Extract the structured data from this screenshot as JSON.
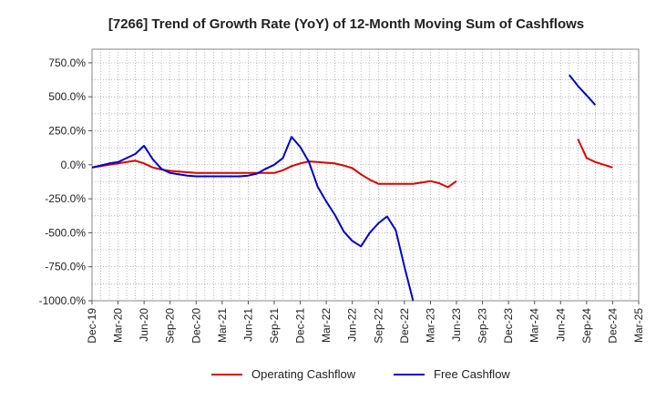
{
  "chart_data": {
    "type": "line",
    "title": "[7266]  Trend of Growth Rate (YoY) of 12-Month Moving Sum of Cashflows",
    "xlabel": "",
    "ylabel": "",
    "ylim": [
      -1000,
      850
    ],
    "y_ticks": [
      750,
      500,
      250,
      0,
      -250,
      -500,
      -750,
      -1000
    ],
    "y_tick_labels": [
      "750.0%",
      "500.0%",
      "250.0%",
      "0.0%",
      "-250.0%",
      "-500.0%",
      "-750.0%",
      "-1000.0%"
    ],
    "x_labels": [
      "Dec-19",
      "Mar-20",
      "Jun-20",
      "Sep-20",
      "Dec-20",
      "Mar-21",
      "Jun-21",
      "Sep-21",
      "Dec-21",
      "Mar-22",
      "Jun-22",
      "Sep-22",
      "Dec-22",
      "Mar-23",
      "Jun-23",
      "Sep-23",
      "Dec-23",
      "Mar-24",
      "Jun-24",
      "Sep-24",
      "Dec-24",
      "Mar-25"
    ],
    "grid": true,
    "legend_position": "bottom",
    "series": [
      {
        "name": "Operating Cashflow",
        "color": "#dd0000",
        "points": [
          [
            0,
            -20
          ],
          [
            1,
            -10
          ],
          [
            2,
            0
          ],
          [
            3,
            10
          ],
          [
            4,
            20
          ],
          [
            5,
            30
          ],
          [
            6,
            10
          ],
          [
            7,
            -20
          ],
          [
            8,
            -35
          ],
          [
            9,
            -45
          ],
          [
            10,
            -50
          ],
          [
            11,
            -55
          ],
          [
            12,
            -60
          ],
          [
            13,
            -60
          ],
          [
            14,
            -60
          ],
          [
            15,
            -60
          ],
          [
            16,
            -60
          ],
          [
            17,
            -60
          ],
          [
            18,
            -60
          ],
          [
            19,
            -60
          ],
          [
            20,
            -60
          ],
          [
            21,
            -60
          ],
          [
            22,
            -40
          ],
          [
            23,
            -10
          ],
          [
            24,
            10
          ],
          [
            25,
            25
          ],
          [
            26,
            20
          ],
          [
            27,
            15
          ],
          [
            28,
            10
          ],
          [
            29,
            -5
          ],
          [
            30,
            -25
          ],
          [
            31,
            -70
          ],
          [
            32,
            -110
          ],
          [
            33,
            -140
          ],
          [
            34,
            -140
          ],
          [
            35,
            -140
          ],
          [
            36,
            -140
          ],
          [
            37,
            -140
          ],
          [
            38,
            -130
          ],
          [
            39,
            -120
          ],
          [
            40,
            -135
          ],
          [
            41,
            -165
          ],
          [
            42,
            -120
          ],
          null,
          [
            56,
            190
          ],
          [
            57,
            50
          ],
          [
            58,
            20
          ],
          [
            59,
            0
          ],
          [
            60,
            -20
          ]
        ]
      },
      {
        "name": "Free Cashflow",
        "color": "#0000cc",
        "points": [
          [
            0,
            -20
          ],
          [
            1,
            -5
          ],
          [
            2,
            10
          ],
          [
            3,
            20
          ],
          [
            4,
            50
          ],
          [
            5,
            80
          ],
          [
            6,
            140
          ],
          [
            7,
            40
          ],
          [
            8,
            -30
          ],
          [
            9,
            -60
          ],
          [
            10,
            -70
          ],
          [
            11,
            -80
          ],
          [
            12,
            -85
          ],
          [
            13,
            -85
          ],
          [
            14,
            -85
          ],
          [
            15,
            -85
          ],
          [
            16,
            -85
          ],
          [
            17,
            -85
          ],
          [
            18,
            -80
          ],
          [
            19,
            -65
          ],
          [
            20,
            -30
          ],
          [
            21,
            0
          ],
          [
            22,
            50
          ],
          [
            23,
            205
          ],
          [
            24,
            130
          ],
          [
            25,
            20
          ],
          [
            26,
            -160
          ],
          [
            27,
            -270
          ],
          [
            28,
            -370
          ],
          [
            29,
            -490
          ],
          [
            30,
            -560
          ],
          [
            31,
            -600
          ],
          [
            32,
            -500
          ],
          [
            33,
            -430
          ],
          [
            34,
            -380
          ],
          [
            35,
            -480
          ],
          [
            36,
            -750
          ],
          [
            37,
            -1000
          ],
          null,
          [
            55,
            660
          ],
          [
            56,
            580
          ],
          [
            57,
            510
          ],
          [
            58,
            440
          ]
        ]
      }
    ]
  }
}
